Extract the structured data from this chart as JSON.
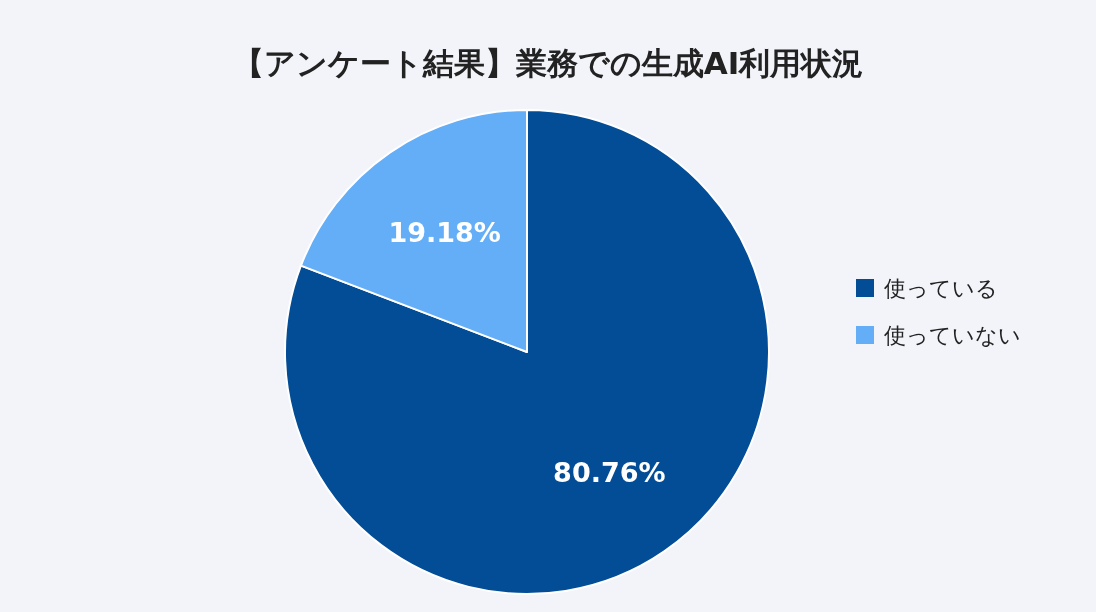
{
  "chart_data": {
    "type": "pie",
    "title": "【アンケート結果】業務での生成AI利用状況",
    "categories": [
      "使っている",
      "使っていない"
    ],
    "values": [
      80.76,
      19.18
    ],
    "value_labels": [
      "80.76%",
      "19.18%"
    ],
    "colors": [
      "#034c96",
      "#64aef8"
    ],
    "legend": "right"
  }
}
